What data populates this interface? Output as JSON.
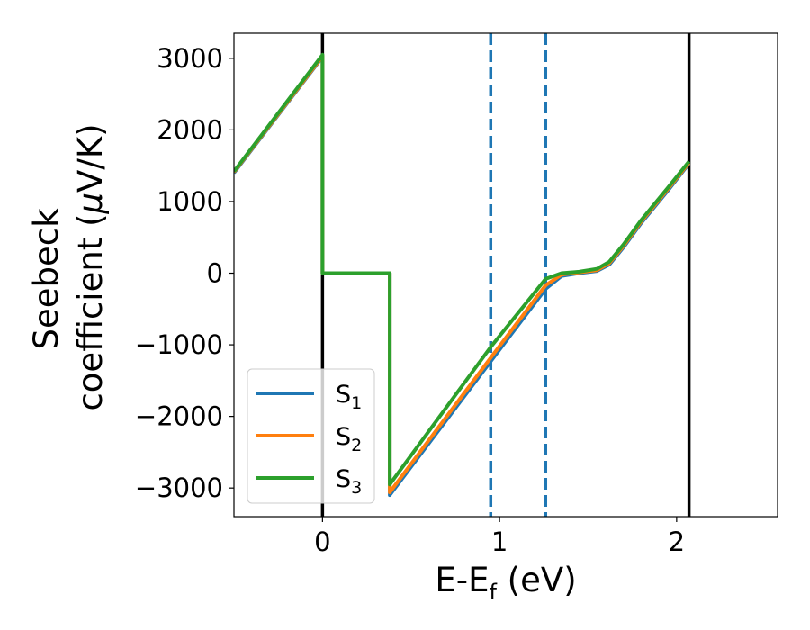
{
  "chart_data": {
    "type": "line",
    "xlabel": "E-E",
    "xlabel_sub": "f",
    "xlabel_unit": " (eV)",
    "ylabel_line1": "Seebeck",
    "ylabel_line2_a": "coefficient  (",
    "ylabel_line2_mu": "μ",
    "ylabel_line2_b": "V/K)",
    "xlim": [
      -0.5,
      2.57
    ],
    "ylim": [
      -3400,
      3350
    ],
    "x_ticks": [
      {
        "value": 0,
        "label": "0"
      },
      {
        "value": 1,
        "label": "1"
      },
      {
        "value": 2,
        "label": "2"
      }
    ],
    "y_ticks": [
      {
        "value": 3000,
        "label": "3000"
      },
      {
        "value": 2000,
        "label": "2000"
      },
      {
        "value": 1000,
        "label": "1000"
      },
      {
        "value": 0,
        "label": "0"
      },
      {
        "value": -1000,
        "label": "−1000"
      },
      {
        "value": -2000,
        "label": "−2000"
      },
      {
        "value": -3000,
        "label": "−3000"
      }
    ],
    "vlines": [
      {
        "x": 0,
        "style": "solid",
        "color": "#000000"
      },
      {
        "x": 2.07,
        "style": "solid",
        "color": "#000000"
      },
      {
        "x": 0.95,
        "style": "dashed",
        "color": "#1f77b4"
      },
      {
        "x": 1.26,
        "style": "dashed",
        "color": "#1f77b4"
      }
    ],
    "legend_position": "lower-left",
    "series": [
      {
        "name": "S",
        "sub": "1",
        "color": "#1f77b4",
        "x": [
          -0.5,
          0,
          0,
          0.38,
          0.38,
          0.95,
          1.26,
          1.35,
          1.45,
          1.55,
          1.62,
          1.7,
          1.8,
          1.95,
          2.07
        ],
        "y": [
          1400,
          3020,
          0,
          0,
          -3100,
          -1230,
          -220,
          -40,
          0,
          30,
          120,
          360,
          700,
          1150,
          1530
        ]
      },
      {
        "name": "S",
        "sub": "2",
        "color": "#ff7f0e",
        "x": [
          -0.5,
          0,
          0,
          0.38,
          0.38,
          0.95,
          1.26,
          1.35,
          1.45,
          1.55,
          1.62,
          1.7,
          1.8,
          1.95,
          2.07
        ],
        "y": [
          1410,
          3030,
          0,
          0,
          -3060,
          -1180,
          -170,
          -20,
          10,
          40,
          140,
          380,
          720,
          1170,
          1540
        ]
      },
      {
        "name": "S",
        "sub": "3",
        "color": "#2ca02c",
        "x": [
          -0.5,
          0,
          0,
          0.38,
          0.38,
          0.95,
          1.26,
          1.35,
          1.45,
          1.55,
          1.62,
          1.7,
          1.8,
          1.95,
          2.07
        ],
        "y": [
          1420,
          3050,
          0,
          0,
          -2950,
          -1030,
          -80,
          0,
          20,
          60,
          160,
          400,
          740,
          1190,
          1560
        ]
      }
    ]
  }
}
